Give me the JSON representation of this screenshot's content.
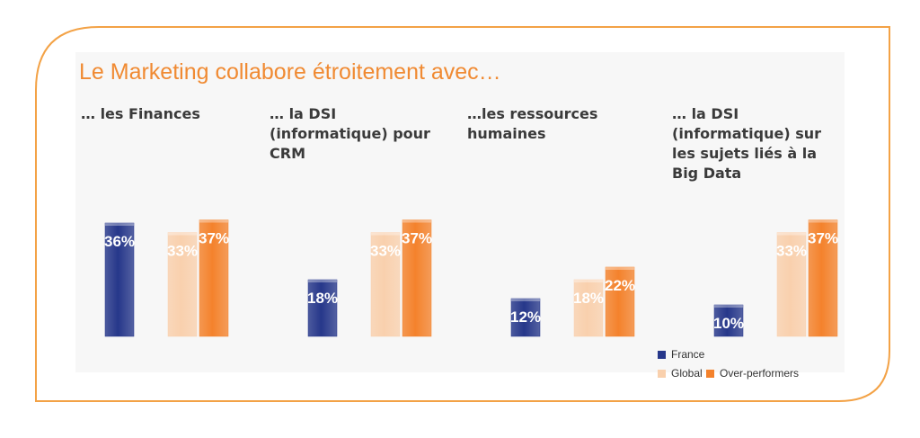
{
  "title": "Le Marketing collabore étroitement avec…",
  "colors": {
    "border": "#f3a246",
    "france": "#26378a",
    "global": "#f9d0ad",
    "over": "#f4822c"
  },
  "chart_data": {
    "type": "bar",
    "categories": [
      "… les Finances",
      "… la DSI (informatique) pour CRM",
      "…les ressources humaines",
      "… la DSI (informatique) sur les sujets liés à la Big Data"
    ],
    "series": [
      {
        "name": "France",
        "values": [
          36,
          18,
          12,
          10
        ],
        "labels": [
          "36%",
          "18%",
          "12%",
          "10%"
        ]
      },
      {
        "name": "Global",
        "values": [
          33,
          33,
          18,
          33
        ],
        "labels": [
          "33%",
          "33%",
          "18%",
          "33%"
        ]
      },
      {
        "name": "Over-performers",
        "values": [
          37,
          37,
          22,
          37
        ],
        "labels": [
          "37%",
          "37%",
          "22%",
          "37%"
        ]
      }
    ],
    "legend": "bottom-right",
    "grid": false
  }
}
